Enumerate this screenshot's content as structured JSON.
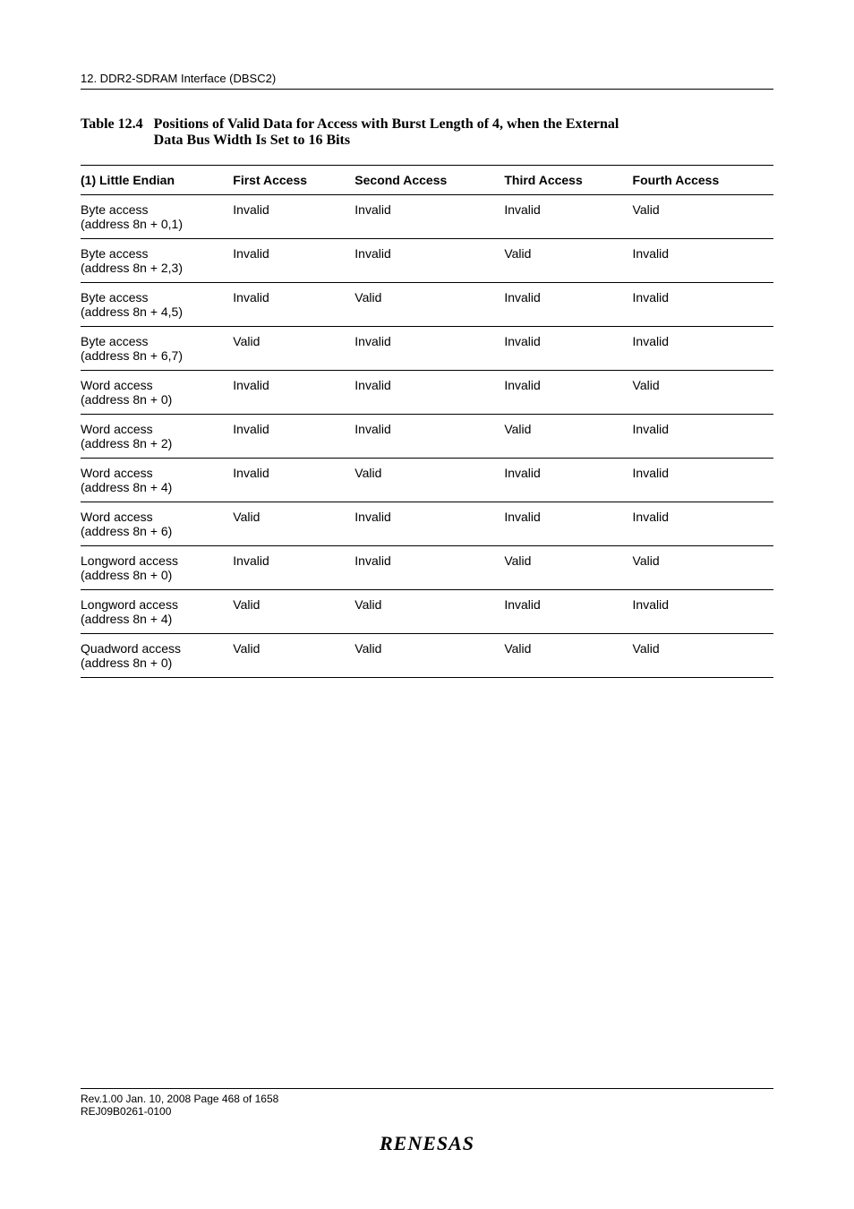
{
  "running_head": "12.   DDR2-SDRAM Interface (DBSC2)",
  "caption": {
    "number": "Table 12.4",
    "text_line1": "Positions of Valid Data for Access with Burst Length of 4, when the External",
    "text_line2": "Data Bus Width Is Set to 16 Bits"
  },
  "columns": [
    "(1) Little Endian",
    "First Access",
    "Second Access",
    "Third Access",
    "Fourth Access"
  ],
  "rows": [
    {
      "c0a": "Byte access",
      "c0b": "(address 8n + 0,1)",
      "c1": "Invalid",
      "c2": "Invalid",
      "c3": "Invalid",
      "c4": "Valid"
    },
    {
      "c0a": "Byte access",
      "c0b": "(address 8n + 2,3)",
      "c1": "Invalid",
      "c2": "Invalid",
      "c3": "Valid",
      "c4": "Invalid"
    },
    {
      "c0a": "Byte access",
      "c0b": "(address 8n + 4,5)",
      "c1": "Invalid",
      "c2": "Valid",
      "c3": "Invalid",
      "c4": "Invalid"
    },
    {
      "c0a": "Byte access",
      "c0b": "(address 8n + 6,7)",
      "c1": "Valid",
      "c2": "Invalid",
      "c3": "Invalid",
      "c4": "Invalid"
    },
    {
      "c0a": "Word access",
      "c0b": "(address 8n + 0)",
      "c1": "Invalid",
      "c2": "Invalid",
      "c3": "Invalid",
      "c4": "Valid"
    },
    {
      "c0a": "Word access",
      "c0b": "(address 8n + 2)",
      "c1": "Invalid",
      "c2": "Invalid",
      "c3": "Valid",
      "c4": "Invalid"
    },
    {
      "c0a": "Word access",
      "c0b": "(address 8n + 4)",
      "c1": "Invalid",
      "c2": "Valid",
      "c3": "Invalid",
      "c4": "Invalid"
    },
    {
      "c0a": "Word access",
      "c0b": "(address 8n + 6)",
      "c1": "Valid",
      "c2": "Invalid",
      "c3": "Invalid",
      "c4": "Invalid"
    },
    {
      "c0a": "Longword access",
      "c0b": "(address 8n + 0)",
      "c1": "Invalid",
      "c2": "Invalid",
      "c3": "Valid",
      "c4": "Valid"
    },
    {
      "c0a": "Longword access",
      "c0b": "(address 8n + 4)",
      "c1": "Valid",
      "c2": "Valid",
      "c3": "Invalid",
      "c4": "Invalid"
    },
    {
      "c0a": "Quadword access",
      "c0b": "(address 8n + 0)",
      "c1": "Valid",
      "c2": "Valid",
      "c3": "Valid",
      "c4": "Valid"
    }
  ],
  "footer": {
    "line1": "Rev.1.00  Jan. 10, 2008  Page 468 of 1658",
    "line2": "REJ09B0261-0100",
    "logo": "RENESAS"
  },
  "style": {
    "page_bg": "#ffffff",
    "text_color": "#000000",
    "body_font": "Times New Roman",
    "table_font": "Arial",
    "caption_fontsize_pt": 12,
    "table_fontsize_pt": 10,
    "rule_color": "#000000",
    "col_widths_pct": [
      22,
      19,
      20,
      19,
      20
    ]
  }
}
